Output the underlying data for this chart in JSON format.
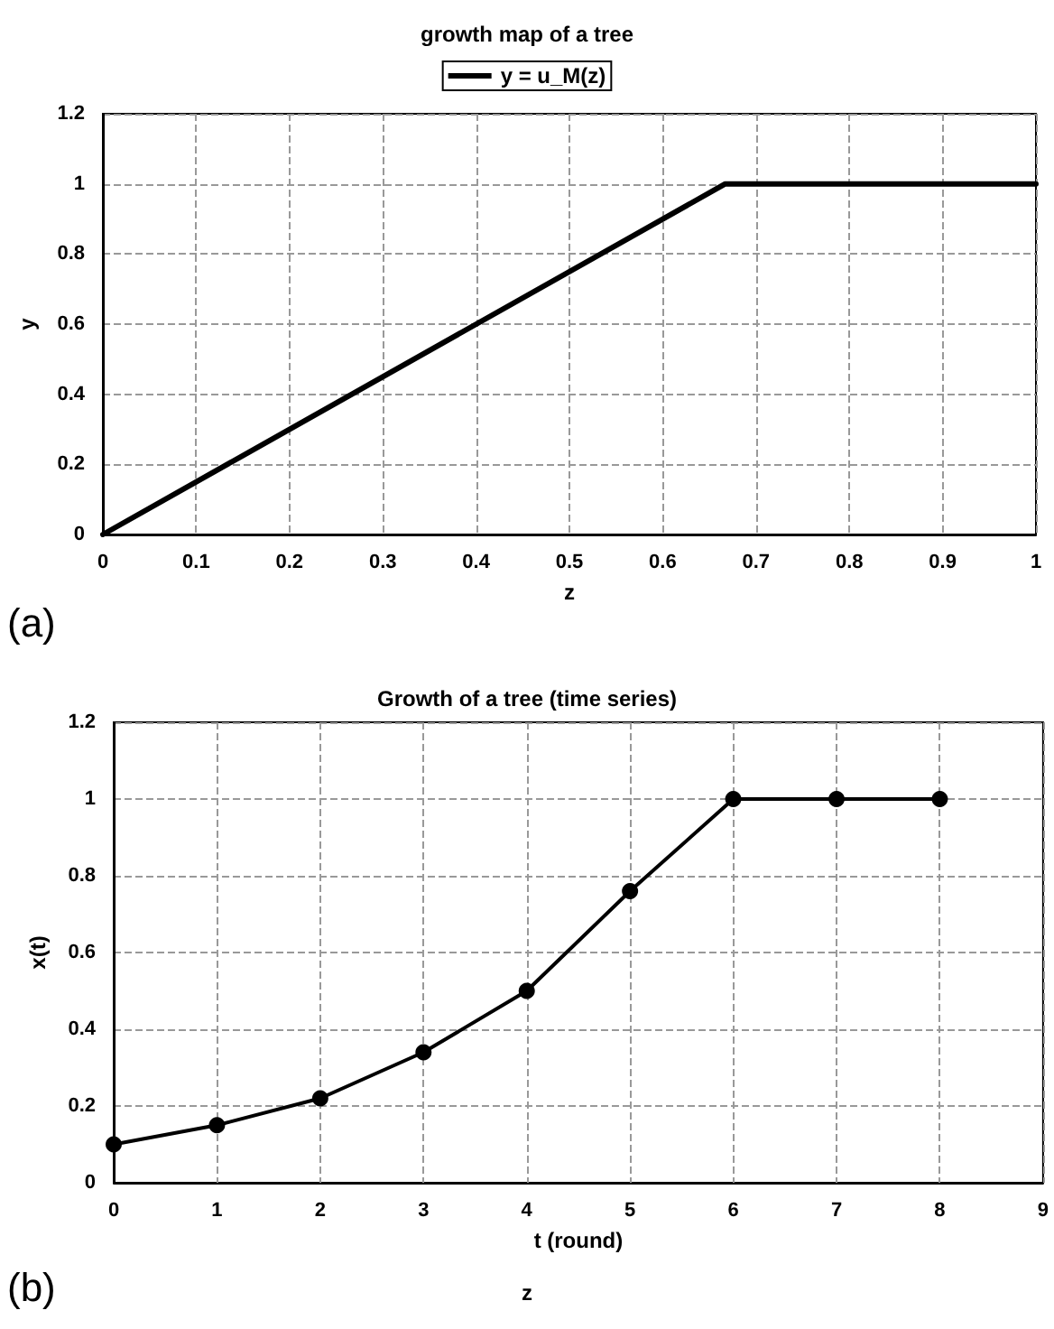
{
  "chart_data": [
    {
      "type": "line",
      "title": "growth map of a tree",
      "xlabel": "z",
      "ylabel": "y",
      "x": [
        0,
        0.667,
        1
      ],
      "series": [
        {
          "name": "y = u_M(z)",
          "color": "#000000",
          "values": [
            0,
            1,
            1
          ]
        }
      ],
      "xlim": [
        0,
        1
      ],
      "xticks": [
        0,
        0.1,
        0.2,
        0.3,
        0.4,
        0.5,
        0.6,
        0.7,
        0.8,
        0.9,
        1
      ],
      "ylim": [
        0,
        1.2
      ],
      "yticks": [
        0,
        0.2,
        0.4,
        0.6,
        0.8,
        1,
        1.2
      ],
      "grid": true,
      "legend": "top",
      "marker": "none",
      "line_style": "solid",
      "annotations": [
        "(a)"
      ]
    },
    {
      "type": "line",
      "title": "Growth of a tree (time series)",
      "xlabel": "t (round)",
      "ylabel": "x(t)",
      "x": [
        0,
        1,
        2,
        3,
        4,
        5,
        6,
        7,
        8
      ],
      "series": [
        {
          "color": "#000000",
          "values": [
            0.1,
            0.15,
            0.22,
            0.34,
            0.5,
            0.76,
            1,
            1,
            1
          ]
        }
      ],
      "xlim": [
        0,
        9
      ],
      "xticks": [
        0,
        1,
        2,
        3,
        4,
        5,
        6,
        7,
        8,
        9
      ],
      "ylim": [
        0,
        1.2
      ],
      "yticks": [
        0,
        0.2,
        0.4,
        0.6,
        0.8,
        1,
        1.2
      ],
      "grid": true,
      "legend": false,
      "marker": "circle",
      "line_style": "solid",
      "annotations": [
        "(b)",
        "z"
      ]
    }
  ]
}
